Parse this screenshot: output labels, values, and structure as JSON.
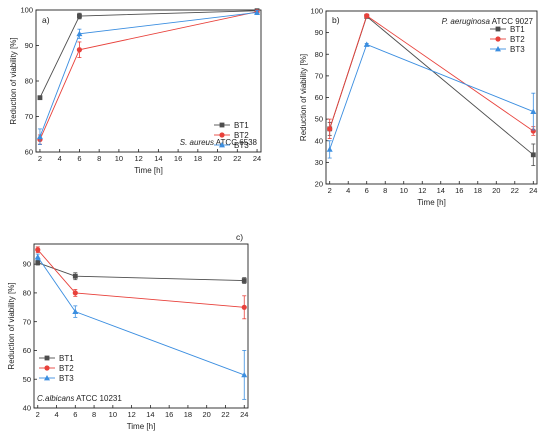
{
  "chart_data": [
    {
      "type": "line",
      "panel_label": "a)",
      "organism": {
        "italic": "S. aureus",
        "suffix": " ATCC 6538"
      },
      "xlabel": "Time [h]",
      "ylabel": "Reduction of viability [%]",
      "xlim": [
        1.6,
        24.4
      ],
      "ylim": [
        60,
        100
      ],
      "xticks": [
        2,
        4,
        6,
        8,
        10,
        12,
        14,
        16,
        18,
        20,
        22,
        24
      ],
      "yticks": [
        60,
        70,
        80,
        90,
        100
      ],
      "x": [
        2,
        6,
        24
      ],
      "legend": "lower-right",
      "series": [
        {
          "name": "BT1",
          "values": [
            75.3,
            98.3,
            99.8
          ],
          "errors": [
            0.2,
            0.8,
            0.2
          ]
        },
        {
          "name": "BT2",
          "values": [
            63.5,
            88.8,
            99.5
          ],
          "errors": [
            1.3,
            2.2,
            0.4
          ]
        },
        {
          "name": "BT3",
          "values": [
            64.3,
            93.3,
            99.3
          ],
          "errors": [
            2.2,
            1.3,
            0.6
          ]
        }
      ]
    },
    {
      "type": "line",
      "panel_label": "b)",
      "organism": {
        "italic": "P. aeruginosa",
        "suffix": " ATCC 9027"
      },
      "xlabel": "Time [h]",
      "ylabel": "Reduction of viability [%]",
      "xlim": [
        1.6,
        24.4
      ],
      "ylim": [
        20,
        100
      ],
      "xticks": [
        2,
        4,
        6,
        8,
        10,
        12,
        14,
        16,
        18,
        20,
        22,
        24
      ],
      "yticks": [
        20,
        30,
        40,
        50,
        60,
        70,
        80,
        90,
        100
      ],
      "x": [
        2,
        6,
        24
      ],
      "legend": "top-right",
      "series": [
        {
          "name": "BT1",
          "values": [
            45.5,
            97.5,
            33.5
          ],
          "errors": [
            3.0,
            0.5,
            5.0
          ]
        },
        {
          "name": "BT2",
          "values": [
            45.5,
            97.8,
            44.5
          ],
          "errors": [
            4.5,
            0.8,
            2.0
          ]
        },
        {
          "name": "BT3",
          "values": [
            36.0,
            84.5,
            53.5
          ],
          "errors": [
            4.0,
            0.5,
            8.5
          ]
        }
      ]
    },
    {
      "type": "line",
      "panel_label": "c)",
      "organism": {
        "italic": "C.albicans",
        "suffix": " ATCC 10231"
      },
      "xlabel": "Time [h]",
      "ylabel": "Reduction of viability [%]",
      "xlim": [
        1.6,
        24.4
      ],
      "ylim": [
        40,
        97
      ],
      "xticks": [
        2,
        4,
        6,
        8,
        10,
        12,
        14,
        16,
        18,
        20,
        22,
        24
      ],
      "yticks": [
        40,
        50,
        60,
        70,
        80,
        90
      ],
      "x": [
        2,
        6,
        24
      ],
      "legend": "lower-left",
      "series": [
        {
          "name": "BT1",
          "values": [
            90.5,
            85.8,
            84.3
          ],
          "errors": [
            0.8,
            1.2,
            1.0
          ]
        },
        {
          "name": "BT2",
          "values": [
            95.0,
            80.0,
            75.0
          ],
          "errors": [
            1.0,
            1.2,
            4.0
          ]
        },
        {
          "name": "BT3",
          "values": [
            92.5,
            73.5,
            51.5
          ],
          "errors": [
            1.0,
            2.0,
            8.5
          ]
        }
      ]
    }
  ],
  "series_colors": {
    "BT1": "#4d4d4d",
    "BT2": "#e8413b",
    "BT3": "#3b8ee0"
  },
  "series_markers": {
    "BT1": "square",
    "BT2": "circle",
    "BT3": "triangle"
  }
}
